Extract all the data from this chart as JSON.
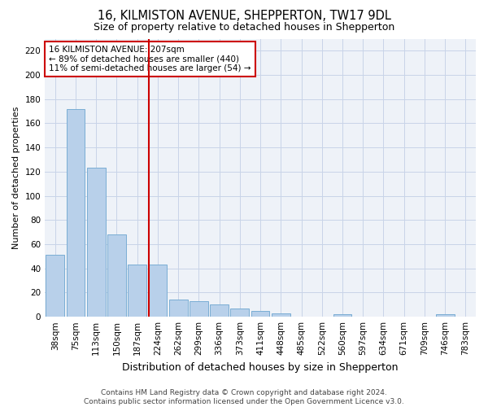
{
  "title": "16, KILMISTON AVENUE, SHEPPERTON, TW17 9DL",
  "subtitle": "Size of property relative to detached houses in Shepperton",
  "xlabel": "Distribution of detached houses by size in Shepperton",
  "ylabel": "Number of detached properties",
  "categories": [
    "38sqm",
    "75sqm",
    "113sqm",
    "150sqm",
    "187sqm",
    "224sqm",
    "262sqm",
    "299sqm",
    "336sqm",
    "373sqm",
    "411sqm",
    "448sqm",
    "485sqm",
    "522sqm",
    "560sqm",
    "597sqm",
    "634sqm",
    "671sqm",
    "709sqm",
    "746sqm",
    "783sqm"
  ],
  "values": [
    51,
    172,
    123,
    68,
    43,
    43,
    14,
    13,
    10,
    7,
    5,
    3,
    0,
    0,
    2,
    0,
    0,
    0,
    0,
    2,
    0
  ],
  "bar_color": "#b8d0ea",
  "bar_edge_color": "#7aadd4",
  "grid_color": "#c8d4e8",
  "reference_line_color": "#cc0000",
  "annotation_text": "16 KILMISTON AVENUE: 207sqm\n← 89% of detached houses are smaller (440)\n11% of semi-detached houses are larger (54) →",
  "annotation_box_edgecolor": "#cc0000",
  "footer_text": "Contains HM Land Registry data © Crown copyright and database right 2024.\nContains public sector information licensed under the Open Government Licence v3.0.",
  "ylim": [
    0,
    230
  ],
  "yticks": [
    0,
    20,
    40,
    60,
    80,
    100,
    120,
    140,
    160,
    180,
    200,
    220
  ],
  "background_color": "#eef2f8",
  "title_fontsize": 10.5,
  "subtitle_fontsize": 9,
  "tick_fontsize": 7.5,
  "ylabel_fontsize": 8,
  "xlabel_fontsize": 9,
  "annotation_fontsize": 7.5,
  "footer_fontsize": 6.5
}
